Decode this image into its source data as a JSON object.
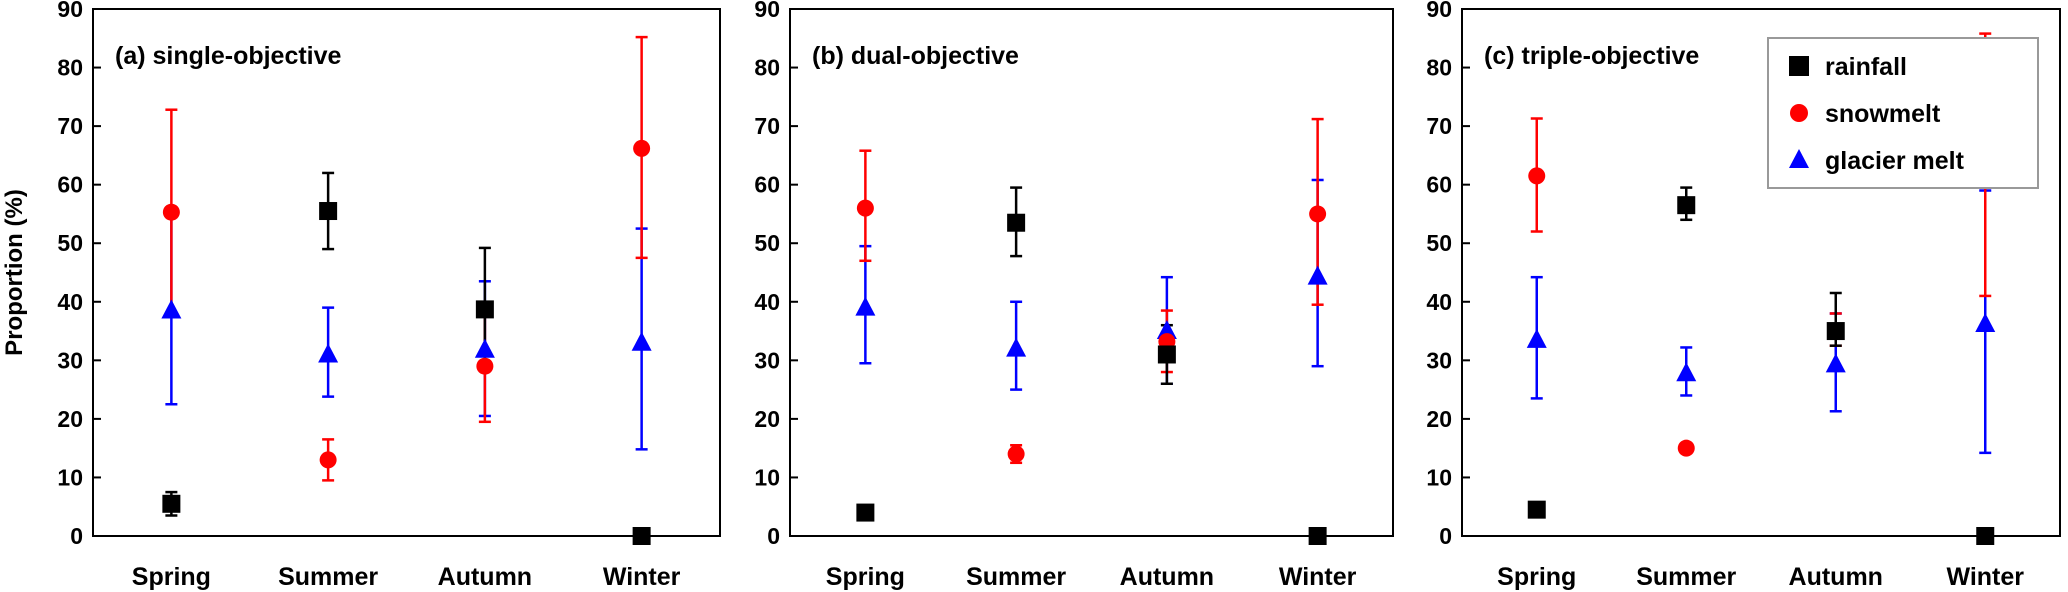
{
  "chart_data": [
    {
      "type": "scatter",
      "title": "(a) single-objective",
      "ylabel": "Proportion (%)",
      "ylim": [
        0,
        90
      ],
      "yticks": [
        0,
        10,
        20,
        30,
        40,
        50,
        60,
        70,
        80,
        90
      ],
      "categories": [
        "Spring",
        "Summer",
        "Autumn",
        "Winter"
      ],
      "series": [
        {
          "name": "rainfall",
          "color": "#000000",
          "marker": "square",
          "values": [
            5.5,
            55.5,
            38.7,
            0
          ],
          "low": [
            3.5,
            49,
            28.5,
            0
          ],
          "high": [
            7.5,
            62,
            49.2,
            0
          ]
        },
        {
          "name": "snowmelt",
          "color": "#ff0000",
          "marker": "circle",
          "values": [
            55.3,
            13,
            29,
            66.2
          ],
          "low": [
            38,
            9.5,
            19.5,
            47.5
          ],
          "high": [
            72.8,
            16.5,
            38.5,
            85.2
          ]
        },
        {
          "name": "glacier melt",
          "color": "#0000ff",
          "marker": "triangle",
          "values": [
            38.5,
            31,
            31.8,
            33
          ],
          "low": [
            22.5,
            23.8,
            20.5,
            14.8
          ],
          "high": [
            54.5,
            39,
            43.5,
            52.5
          ]
        }
      ],
      "legend": false
    },
    {
      "type": "scatter",
      "title": "(b) dual-objective",
      "ylim": [
        0,
        90
      ],
      "yticks": [
        0,
        10,
        20,
        30,
        40,
        50,
        60,
        70,
        80,
        90
      ],
      "categories": [
        "Spring",
        "Summer",
        "Autumn",
        "Winter"
      ],
      "series": [
        {
          "name": "rainfall",
          "color": "#000000",
          "marker": "square",
          "values": [
            4,
            53.5,
            31,
            0
          ],
          "low": [
            4,
            47.8,
            26,
            0
          ],
          "high": [
            4,
            59.5,
            36,
            0
          ]
        },
        {
          "name": "snowmelt",
          "color": "#ff0000",
          "marker": "circle",
          "values": [
            56,
            14,
            33.2,
            55
          ],
          "low": [
            47,
            12.5,
            28,
            39.5
          ],
          "high": [
            65.8,
            15.5,
            38.5,
            71.2
          ]
        },
        {
          "name": "glacier melt",
          "color": "#0000ff",
          "marker": "triangle",
          "values": [
            39,
            32,
            35,
            44.3
          ],
          "low": [
            29.5,
            25,
            26,
            29
          ],
          "high": [
            49.5,
            40,
            44.2,
            60.8
          ]
        }
      ],
      "legend": false
    },
    {
      "type": "scatter",
      "title": "(c) triple-objective",
      "ylim": [
        0,
        90
      ],
      "yticks": [
        0,
        10,
        20,
        30,
        40,
        50,
        60,
        70,
        80,
        90
      ],
      "categories": [
        "Spring",
        "Summer",
        "Autumn",
        "Winter"
      ],
      "series": [
        {
          "name": "rainfall",
          "color": "#000000",
          "marker": "square",
          "values": [
            4.5,
            56.5,
            35,
            0
          ],
          "low": [
            4.5,
            54,
            32.5,
            0
          ],
          "high": [
            4.5,
            59.5,
            41.5,
            0
          ]
        },
        {
          "name": "snowmelt",
          "color": "#ff0000",
          "marker": "circle",
          "values": [
            61.5,
            15,
            35,
            63.3
          ],
          "low": [
            52,
            14.5,
            32.5,
            41
          ],
          "high": [
            71.3,
            15.5,
            38,
            85.8
          ]
        },
        {
          "name": "glacier melt",
          "color": "#0000ff",
          "marker": "triangle",
          "values": [
            33.5,
            27.8,
            29.3,
            36.2
          ],
          "low": [
            23.5,
            24,
            21.3,
            14.2
          ],
          "high": [
            44.2,
            32.2,
            38,
            59
          ]
        }
      ],
      "legend": true,
      "legend_position": "top-right"
    }
  ]
}
